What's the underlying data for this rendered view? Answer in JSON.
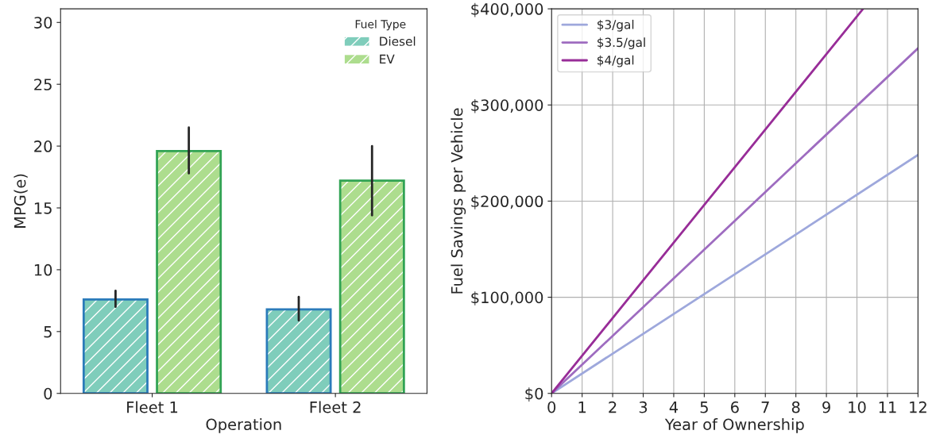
{
  "chart_data": [
    {
      "type": "bar",
      "xlabel": "Operation",
      "ylabel": "MPG(e)",
      "categories": [
        "Fleet 1",
        "Fleet 2"
      ],
      "legend_title": "Fuel Type",
      "legend": "top right",
      "ylim": [
        0,
        31.1
      ],
      "yticks": [
        0,
        5,
        10,
        15,
        20,
        25,
        30
      ],
      "grid": false,
      "series": [
        {
          "name": "Diesel",
          "color": "#7fcdbb",
          "values": [
            7.6,
            6.8
          ],
          "errors": [
            [
              7.0,
              8.3
            ],
            [
              5.9,
              7.8
            ]
          ]
        },
        {
          "name": "EV",
          "color": "#addd8e",
          "values": [
            19.6,
            17.2
          ],
          "errors": [
            [
              17.8,
              21.5
            ],
            [
              14.4,
              20.0
            ]
          ]
        }
      ]
    },
    {
      "type": "line",
      "xlabel": "Year of Ownership",
      "ylabel": "Fuel Savings per Vehicle",
      "xlim": [
        0,
        12
      ],
      "xticks": [
        0,
        1,
        2,
        3,
        4,
        5,
        6,
        7,
        8,
        9,
        10,
        11,
        12
      ],
      "ylim": [
        0,
        400000
      ],
      "yticks": [
        {
          "value": 0,
          "label": "$0"
        },
        {
          "value": 100000,
          "label": "$100,000"
        },
        {
          "value": 200000,
          "label": "$200,000"
        },
        {
          "value": 300000,
          "label": "$300,000"
        },
        {
          "value": 400000,
          "label": "$400,000"
        }
      ],
      "grid": true,
      "legend": "top left",
      "series": [
        {
          "name": "$3/gal",
          "color": "#9ea8dc",
          "x": [
            0,
            12
          ],
          "values": [
            0,
            248000
          ]
        },
        {
          "name": "$3.5/gal",
          "color": "#9e6cc0",
          "x": [
            0,
            12
          ],
          "values": [
            0,
            359000
          ]
        },
        {
          "name": "$4/gal",
          "color": "#982d98",
          "x": [
            0,
            10.2
          ],
          "values": [
            0,
            400000
          ]
        }
      ]
    }
  ]
}
